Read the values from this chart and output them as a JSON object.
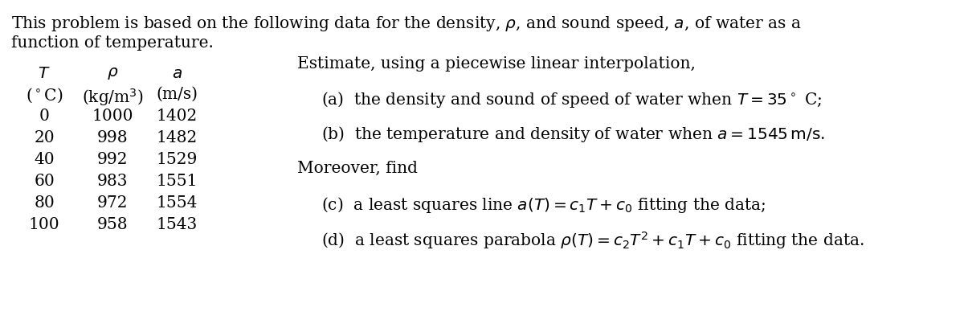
{
  "bg_color": "#ffffff",
  "fig_width": 12.0,
  "fig_height": 4.14,
  "dpi": 100,
  "table_data": [
    [
      0,
      1000,
      1402
    ],
    [
      20,
      998,
      1482
    ],
    [
      40,
      992,
      1529
    ],
    [
      60,
      983,
      1551
    ],
    [
      80,
      972,
      1554
    ],
    [
      100,
      958,
      1543
    ]
  ]
}
